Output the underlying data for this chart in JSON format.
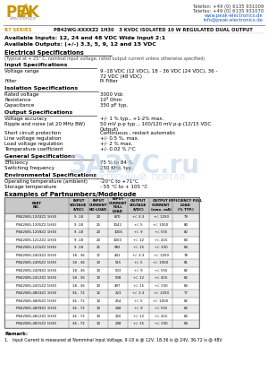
{
  "title_series": "B7 SERIES",
  "title_part": "PB42WG-XXXXZ2 1H30   3 KVDC ISOLATED 10 W REGULATED DUAL OUTPUT",
  "telefon": "Telefon: +49 (0) 6135 931009",
  "telefax": "Telefax: +49 (0) 6135 931070",
  "website": "www.peak-electronics.de",
  "email": "info@peak-electronics.de",
  "available_inputs": "Available Inputs: 12, 24 and 48 VDC Wide Input 2:1",
  "available_outputs": "Available Outputs: (+/-) 3.3, 5, 9, 12 and 15 VDC",
  "elec_spec_title": "Electrical Specifications",
  "elec_spec_note": "(Typical at + 25° C, nominal input voltage, rated output current unless otherwise specified)",
  "input_spec_title": "Input Specifications",
  "voltage_range_label": "Voltage range",
  "voltage_range_val": "9 -18 VDC (12 VDC), 18 - 36 VDC (24 VDC), 36 -\n72 VDC (48 VDC)",
  "filter_label": "Filter",
  "filter_val": "Pi Filter",
  "isolation_spec_title": "Isolation Specifications",
  "rated_voltage_label": "Rated voltage",
  "rated_voltage_val": "3000 Vdc",
  "resistance_label": "Resistance",
  "resistance_val": "10⁹ Ohm",
  "capacitance_label": "Capacitance",
  "capacitance_val": "350 pF typ.",
  "output_spec_title": "Output Specifications",
  "voltage_accuracy_label": "Voltage accuracy",
  "voltage_accuracy_val": "+/- 1 % typ., +1-2% max.",
  "ripple_label": "Ripple and noise (at 20 MHz BW)",
  "ripple_val": "50 mV p-p typ. , 100/120 mV p-p (12/15 VDC\nOutput)",
  "short_circuit_label": "Short circuit protection",
  "short_circuit_val": "Continuous , restart automatic",
  "line_voltage_label": "Line voltage regulation",
  "line_voltage_val": "+/- 0.5 %, max.",
  "load_voltage_label": "Load voltage regulation",
  "load_voltage_val": "+/- 2 % max.",
  "temp_coeff_label": "Temperature coefficient",
  "temp_coeff_val": "+/- 0.02 % /°C",
  "general_spec_title": "General Specifications",
  "efficiency_label": "Efficiency",
  "efficiency_val": "75 % to 84 %",
  "switching_label": "Switching frequency",
  "switching_val": "250 KHz, typ.",
  "env_spec_title": "Environmental Specifications",
  "operating_temp_label": "Operating temperature (ambient)",
  "operating_temp_val": "-20°C to +71°C",
  "storage_temp_label": "Storage temperature",
  "storage_temp_val": "- 55 °C to + 105 °C",
  "examples_title": "Examples of Partnumbers/Modelcode",
  "table_headers": [
    "PART\nNO.",
    "INPUT\nVOLTAGE\n(VDC)",
    "INPUT\nCURRENT\nNO-LOAD",
    "INPUT\nCURRENT\nFULL\nLOAD",
    "OUTPUT\nVOLTAGE\n(VDC)",
    "OUTPUT\nCURRENT\n(max. mA)",
    "EFFICIENCY FULL\nLOAD\n(% TYP.)"
  ],
  "table_data": [
    [
      "PB42WG-1203Z2 1H30",
      "9 -18",
      "20",
      "870",
      "+/- 3.3",
      "+/- 1250",
      "79"
    ],
    [
      "PB42WG-1205Z2 1H30",
      "9 -18",
      "25",
      "1042",
      "+/- 5",
      "+/- 1000",
      "80"
    ],
    [
      "PB42WG-1209Z2 1H30",
      "9 -18",
      "20",
      "1006",
      "+/- 9",
      "+/- 555",
      "82"
    ],
    [
      "PB42WG-1212Z2 1H30",
      "9 -18",
      "20",
      "1000",
      "+/- 12",
      "+/- 415",
      "83"
    ],
    [
      "PB42WG-1215Z2 1H30",
      "9 -18",
      "25",
      "982",
      "+/- 15",
      "+/- 330",
      "84"
    ],
    [
      "PB42WG-2403Z2 1H30",
      "18 - 36",
      "17",
      "441",
      "+/- 3.3",
      "+/- 1250",
      "78"
    ],
    [
      "PB42WG-2405Z2 1H30",
      "18 - 36",
      "10",
      "515",
      "+/- 5",
      "+/- 1000",
      "81"
    ],
    [
      "PB42WG-2409Z2 1H30",
      "18 - 36",
      "10",
      "503",
      "+/- 9",
      "+/- 555",
      "82"
    ],
    [
      "PB42WG-2412Z2 1H30",
      "18 - 36",
      "10",
      "508",
      "+/- 12",
      "+/- 415",
      "82"
    ],
    [
      "PB42WG-2415Z2 1H30",
      "18 - 36",
      "10",
      "497",
      "+/- 15",
      "+/- 330",
      "83"
    ],
    [
      "PB42WG-4803Z2 1H30",
      "36 - 72",
      "12",
      "223",
      "+/- 3.3",
      "+/- 1250",
      "77"
    ],
    [
      "PB42WG-4805Z2 1H30",
      "36 - 72",
      "10",
      "254",
      "+/- 5",
      "+/- 1000",
      "82"
    ],
    [
      "PB42WG-4809Z2 1H30",
      "36 - 72",
      "10",
      "248",
      "+/- 9",
      "+/- 555",
      "83"
    ],
    [
      "PB42WG-4812Z2 1H30",
      "36 - 72",
      "10",
      "250",
      "+/- 12",
      "+/- 415",
      "83"
    ],
    [
      "PB42WG-4815Z2 1H30",
      "36 - 72",
      "10",
      "248",
      "+/- 15",
      "+/- 330",
      "84"
    ]
  ],
  "remark_title": "Remark:",
  "remark_text": "1.   Input Current is measured at Nomminal Input Voltage, 9-18 is @ 12V, 18-36 is @ 24V, 36-72 is @ 48V",
  "peak_color": "#c8960a",
  "header_bg": "#c8c8c8",
  "row_alt_bg": "#ebebeb",
  "border_color": "#888888",
  "watermark1": "ЗАЗУС.ru",
  "watermark2": "ЭЛЕКТРОННЫЙ  ПОРТАЛ"
}
